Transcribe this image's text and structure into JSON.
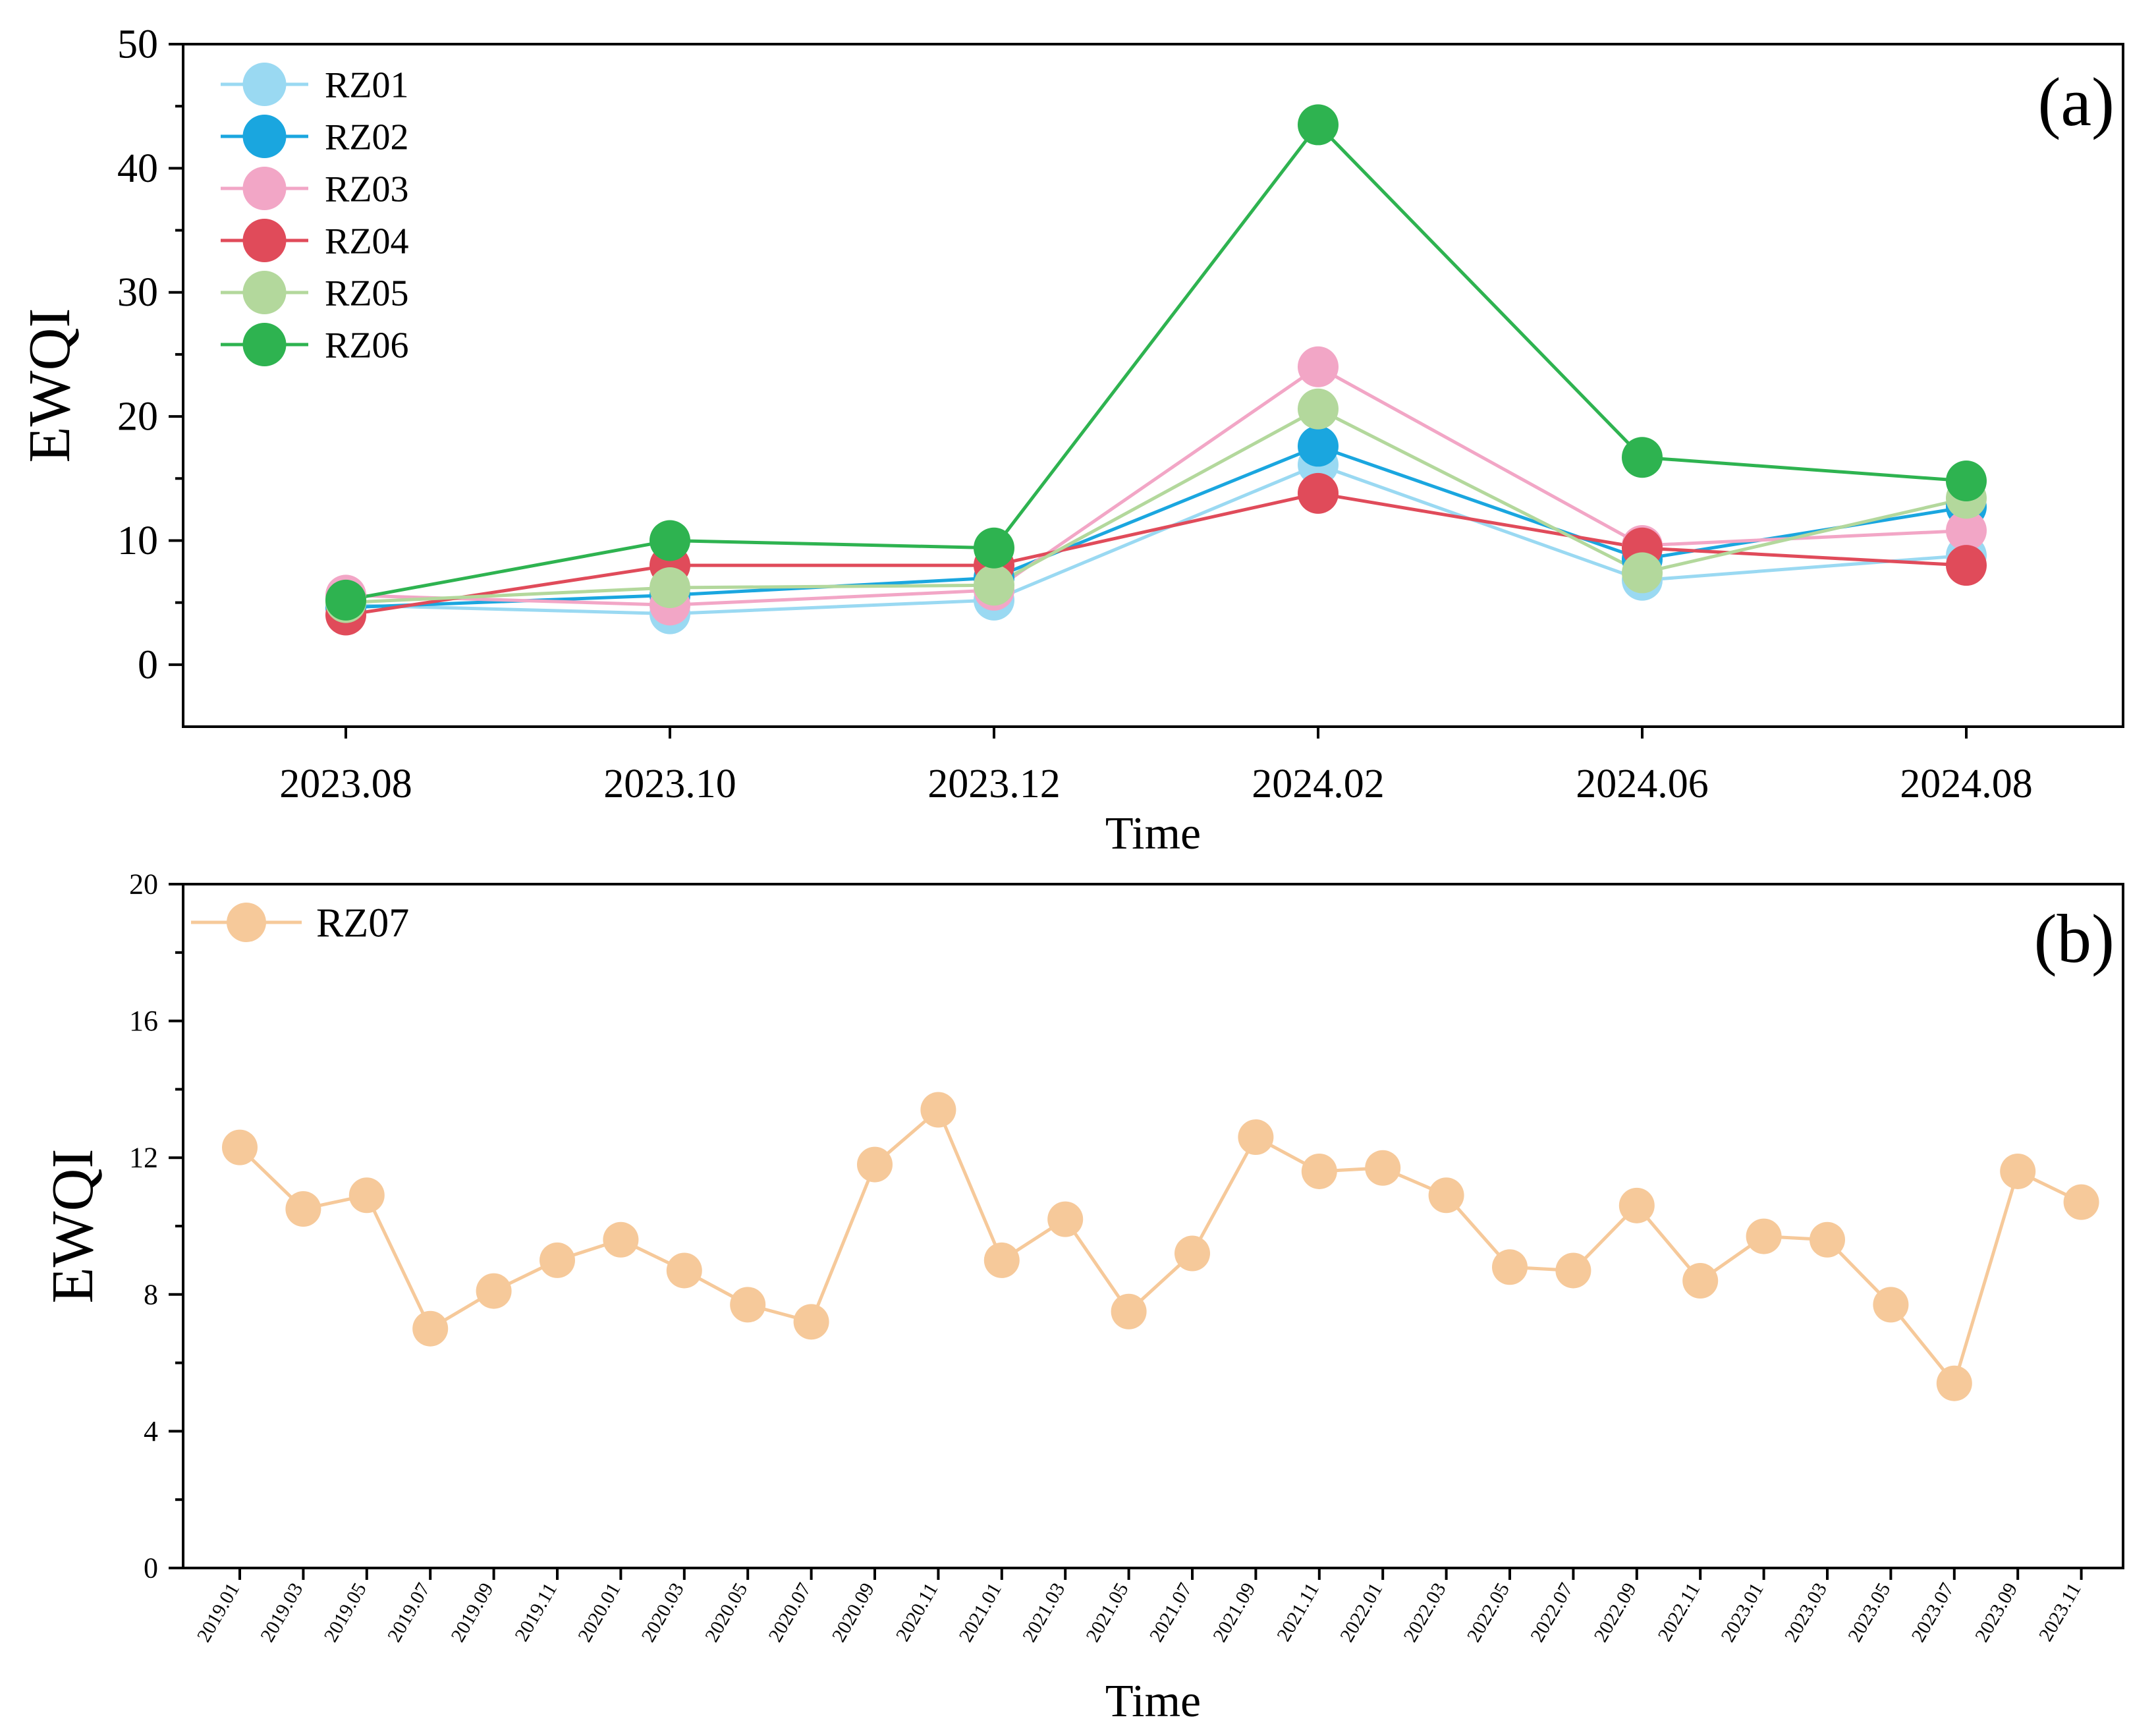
{
  "chart_data": [
    {
      "type": "line",
      "panel_label": "(a)",
      "xlabel": "Time",
      "ylabel": "EWQI",
      "ylim": [
        -5,
        50
      ],
      "yticks": [
        0,
        10,
        20,
        30,
        40,
        50
      ],
      "categories": [
        "2023.08",
        "2023.10",
        "2023.12",
        "2024.02",
        "2024.06",
        "2024.08"
      ],
      "legend_position": "top-left",
      "series": [
        {
          "name": "RZ01",
          "color": "#9ad9f2",
          "values": [
            4.8,
            4.1,
            5.2,
            16.1,
            6.8,
            8.8
          ]
        },
        {
          "name": "RZ02",
          "color": "#1aa6df",
          "values": [
            4.6,
            5.6,
            7.0,
            17.6,
            8.5,
            12.7
          ]
        },
        {
          "name": "RZ03",
          "color": "#f2a6c6",
          "values": [
            5.6,
            4.8,
            6.0,
            24.0,
            9.6,
            10.8
          ]
        },
        {
          "name": "RZ04",
          "color": "#e04b5a",
          "values": [
            4.0,
            8.0,
            8.0,
            13.8,
            9.4,
            8.0
          ]
        },
        {
          "name": "RZ05",
          "color": "#b3d89c",
          "values": [
            5.0,
            6.2,
            6.4,
            20.6,
            7.4,
            13.4
          ]
        },
        {
          "name": "RZ06",
          "color": "#2eb350",
          "values": [
            5.2,
            10.0,
            9.4,
            43.5,
            16.7,
            14.8
          ]
        }
      ]
    },
    {
      "type": "line",
      "panel_label": "(b)",
      "xlabel": "Time",
      "ylabel": "EWQI",
      "ylim": [
        0,
        20
      ],
      "yticks": [
        0,
        4,
        8,
        12,
        16,
        20
      ],
      "categories": [
        "2019.01",
        "2019.03",
        "2019.05",
        "2019.07",
        "2019.09",
        "2019.11",
        "2020.01",
        "2020.03",
        "2020.05",
        "2020.07",
        "2020.09",
        "2020.11",
        "2021.01",
        "2021.03",
        "2021.05",
        "2021.07",
        "2021.09",
        "2021.11",
        "2022.01",
        "2022.03",
        "2022.05",
        "2022.07",
        "2022.09",
        "2022.11",
        "2023.01",
        "2023.03",
        "2023.05",
        "2023.07",
        "2023.09",
        "2023.11"
      ],
      "legend_position": "top-left",
      "series": [
        {
          "name": "RZ07",
          "color": "#f6c99a",
          "values": [
            12.3,
            10.5,
            10.9,
            7.0,
            8.1,
            9.0,
            9.6,
            8.7,
            7.7,
            7.2,
            11.8,
            13.4,
            9.0,
            10.2,
            7.5,
            9.2,
            12.6,
            11.6,
            11.7,
            10.9,
            8.8,
            8.7,
            10.6,
            8.4,
            9.7,
            9.6,
            7.7,
            5.4,
            11.6,
            10.7
          ]
        }
      ]
    }
  ]
}
